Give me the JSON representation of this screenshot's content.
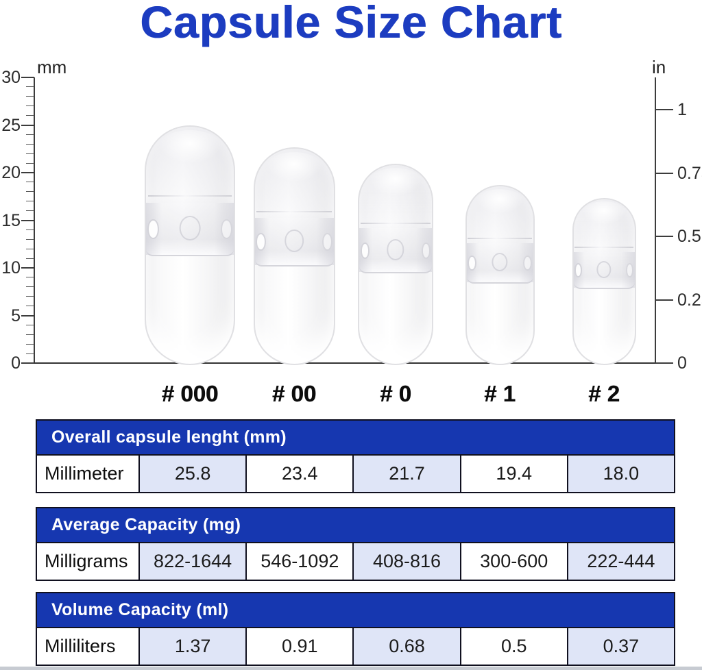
{
  "page": {
    "title": "Capsule Size Chart"
  },
  "chart_data": {
    "type": "bar",
    "title": "Capsule Size Chart",
    "categories": [
      "# 000",
      "# 00",
      "# 0",
      "# 1",
      "# 2"
    ],
    "left_axis": {
      "label": "mm",
      "range": [
        0,
        30
      ],
      "major_ticks": [
        30,
        25,
        20,
        15,
        10,
        5,
        0
      ],
      "minor_step_mm": 1
    },
    "right_axis": {
      "label": "in",
      "ticks": [
        "1",
        "0.75",
        "0.5",
        "0.25",
        "0"
      ]
    },
    "series": [
      {
        "name": "Overall capsule lenght (mm)",
        "unit": "mm",
        "values": [
          25.8,
          23.4,
          21.7,
          19.4,
          18.0
        ]
      },
      {
        "name": "Average Capacity (mg)",
        "unit": "mg",
        "values": [
          "822-1644",
          "546-1092",
          "408-816",
          "300-600",
          "222-444"
        ]
      },
      {
        "name": "Volume Capacity (ml)",
        "unit": "ml",
        "values": [
          1.37,
          0.91,
          0.68,
          0.5,
          0.37
        ]
      }
    ],
    "legend": "none",
    "grid": false,
    "notes": "Pictorial bar chart: each bar is a transparent two-piece capsule drawn to scale against the mm (left) and inch (right) rulers."
  },
  "axes": {
    "left_unit": "mm",
    "right_unit": "in"
  },
  "capsules": [
    {
      "label": "# 000",
      "length_mm": 25.8
    },
    {
      "label": "# 00",
      "length_mm": 23.4
    },
    {
      "label": "# 0",
      "length_mm": 21.7
    },
    {
      "label": "# 1",
      "length_mm": 19.4
    },
    {
      "label": "# 2",
      "length_mm": 18.0
    }
  ],
  "tables": [
    {
      "header": "Overall capsule lenght (mm)",
      "row_label": "Millimeter",
      "values": [
        "25.8",
        "23.4",
        "21.7",
        "19.4",
        "18.0"
      ]
    },
    {
      "header": "Average Capacity (mg)",
      "row_label": "Milligrams",
      "values": [
        "822-1644",
        "546-1092",
        "408-816",
        "300-600",
        "222-444"
      ]
    },
    {
      "header": "Volume Capacity (ml)",
      "row_label": "Milliliters",
      "values": [
        "1.37",
        "0.91",
        "0.68",
        "0.5",
        "0.37"
      ]
    }
  ],
  "colors": {
    "title_blue": "#1c3cc0",
    "header_blue": "#1637b0",
    "cell_lavender": "#dfe5f7",
    "table_border": "#10101f",
    "axis_gray": "#3c3c3c"
  }
}
